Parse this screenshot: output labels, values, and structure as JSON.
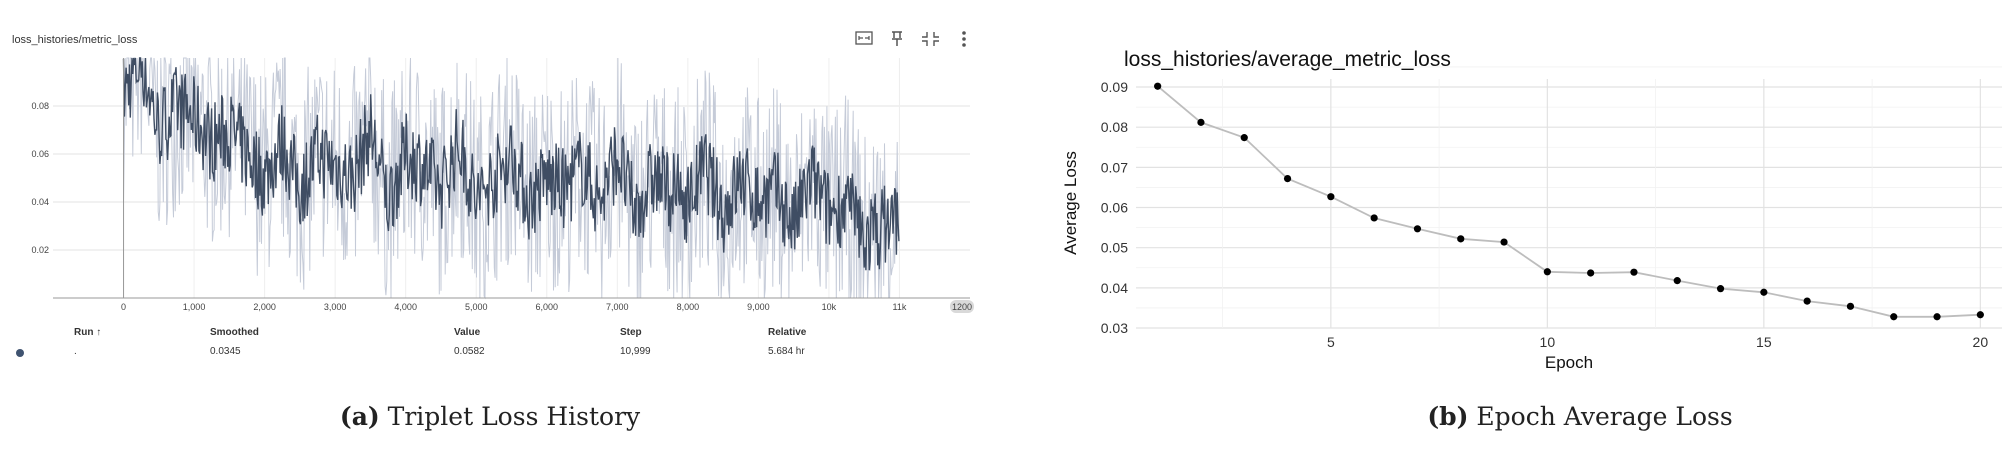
{
  "panel_a": {
    "card_title": "loss_histories/metric_loss",
    "x_ticks": [
      "0",
      "1,000",
      "2,000",
      "3,000",
      "4,000",
      "5,000",
      "6,000",
      "7,000",
      "8,000",
      "9,000",
      "10k",
      "11k"
    ],
    "x_range_badge": "1200",
    "y_ticks": [
      "0.02",
      "0.04",
      "0.06",
      "0.08"
    ],
    "toolbar_icons": [
      "fullscreen-icon",
      "pin-icon",
      "fit-domain-icon",
      "more-vert-icon"
    ],
    "table": {
      "headers": [
        "Run ↑",
        "Smoothed",
        "Value",
        "Step",
        "Relative"
      ],
      "row": {
        "run": ".",
        "smoothed": "0.0345",
        "value": "0.0582",
        "step": "10,999",
        "relative": "5.684 hr"
      },
      "run_color": "#3f5370"
    },
    "caption_letter": "(a)",
    "caption_text": "Triplet Loss History"
  },
  "panel_b": {
    "caption_letter": "(b)",
    "caption_text": "Epoch Average Loss"
  },
  "colors": {
    "smoothed": "#3f4d63",
    "raw": "#c5cbd8",
    "grid": "#e2e2e2",
    "point": "#000000",
    "line_b": "#bdbdbd"
  },
  "chart_data": [
    {
      "type": "line",
      "title": "loss_histories/metric_loss",
      "xlabel": "",
      "ylabel": "",
      "xlim": [
        -1000,
        12000
      ],
      "ylim": [
        0,
        0.1
      ],
      "grid": true,
      "series": [
        {
          "x": [
            0,
            250,
            500,
            750,
            1000,
            1250,
            1500,
            1750,
            2000,
            2250,
            2500,
            2750,
            3000,
            3250,
            3500,
            3750,
            4000,
            4250,
            4500,
            4750,
            5000,
            5250,
            5500,
            5750,
            6000,
            6250,
            6500,
            6750,
            7000,
            7250,
            7500,
            7750,
            8000,
            8250,
            8500,
            8750,
            9000,
            9250,
            9500,
            9750,
            10000,
            10250,
            10500,
            10750,
            11000
          ],
          "values": [
            0.085,
            0.1,
            0.07,
            0.08,
            0.075,
            0.065,
            0.07,
            0.06,
            0.05,
            0.065,
            0.045,
            0.06,
            0.055,
            0.05,
            0.07,
            0.04,
            0.06,
            0.055,
            0.045,
            0.065,
            0.04,
            0.05,
            0.06,
            0.04,
            0.05,
            0.045,
            0.055,
            0.04,
            0.06,
            0.035,
            0.05,
            0.045,
            0.04,
            0.055,
            0.035,
            0.05,
            0.04,
            0.045,
            0.03,
            0.05,
            0.035,
            0.04,
            0.025,
            0.03,
            0.035
          ]
        }
      ]
    },
    {
      "type": "line",
      "title": "loss_histories/average_metric_loss",
      "xlabel": "Epoch",
      "ylabel": "Average Loss",
      "xlim": [
        0.5,
        20.5
      ],
      "ylim": [
        0.03,
        0.092
      ],
      "x_ticks": [
        5,
        10,
        15,
        20
      ],
      "y_ticks": [
        0.03,
        0.04,
        0.05,
        0.06,
        0.07,
        0.08,
        0.09
      ],
      "grid": true,
      "series": [
        {
          "x": [
            1,
            2,
            3,
            4,
            5,
            6,
            7,
            8,
            9,
            10,
            11,
            12,
            13,
            14,
            15,
            16,
            17,
            18,
            19,
            20
          ],
          "values": [
            0.0902,
            0.0812,
            0.0774,
            0.0672,
            0.0627,
            0.0574,
            0.0547,
            0.0522,
            0.0514,
            0.044,
            0.0437,
            0.0439,
            0.0418,
            0.0398,
            0.0389,
            0.0367,
            0.0354,
            0.0328,
            0.0328,
            0.0333
          ]
        }
      ]
    }
  ]
}
